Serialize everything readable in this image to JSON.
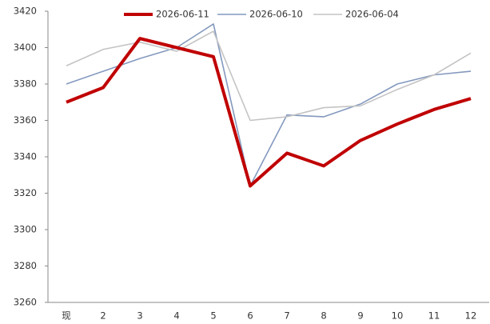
{
  "chart_data": {
    "type": "line",
    "categories": [
      "现",
      "2",
      "3",
      "4",
      "5",
      "6",
      "7",
      "8",
      "9",
      "10",
      "11",
      "12"
    ],
    "series": [
      {
        "name": "2026-06-11",
        "color": "#c00000",
        "values": [
          3370,
          3378,
          3405,
          3400,
          3395,
          3324,
          3342,
          3335,
          3349,
          3358,
          3366,
          3372
        ]
      },
      {
        "name": "2026-06-10",
        "color": "#8499bf",
        "values": [
          3380,
          3387,
          3394,
          3400,
          3413,
          3324,
          3363,
          3362,
          3369,
          3380,
          3385,
          3387
        ]
      },
      {
        "name": "2026-06-04",
        "color": "#c4c4c4",
        "values": [
          3390,
          3399,
          3403,
          3398,
          3409,
          3360,
          3362,
          3367,
          3368,
          3377,
          3385,
          3397
        ]
      }
    ],
    "ylim": [
      3260,
      3420
    ],
    "yticks": [
      3260,
      3280,
      3300,
      3320,
      3340,
      3360,
      3380,
      3400,
      3420
    ],
    "grid": false,
    "legend": "top"
  }
}
